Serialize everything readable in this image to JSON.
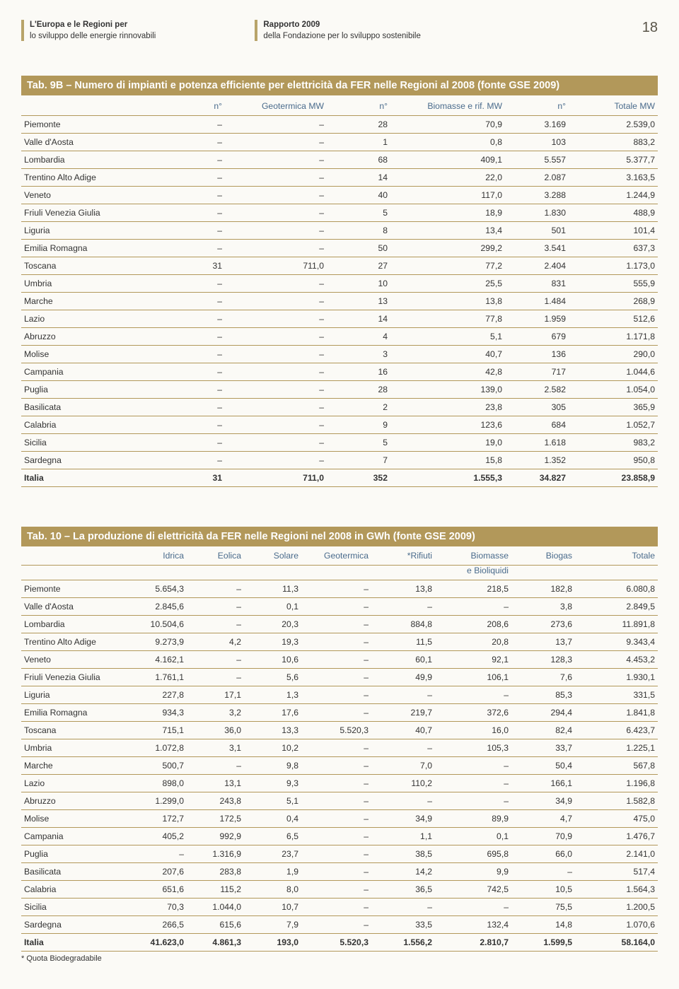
{
  "header": {
    "left_line1": "L'Europa e le Regioni per",
    "left_line2": "lo sviluppo delle energie rinnovabili",
    "mid_line1": "Rapporto 2009",
    "mid_line2": "della Fondazione per lo sviluppo sostenibile",
    "page_number": "18"
  },
  "colors": {
    "accent": "#b2985a",
    "header_text": "#4a6b8c"
  },
  "table9b": {
    "title": "Tab. 9B – Numero di impianti e potenza efficiente per elettricità da FER nelle Regioni al 2008 (fonte GSE 2009)",
    "columns": [
      "",
      "n°",
      "Geotermica MW",
      "n°",
      "Biomasse e rif. MW",
      "n°",
      "Totale MW"
    ],
    "rows": [
      [
        "Piemonte",
        "–",
        "–",
        "28",
        "70,9",
        "3.169",
        "2.539,0"
      ],
      [
        "Valle d'Aosta",
        "–",
        "–",
        "1",
        "0,8",
        "103",
        "883,2"
      ],
      [
        "Lombardia",
        "–",
        "–",
        "68",
        "409,1",
        "5.557",
        "5.377,7"
      ],
      [
        "Trentino Alto Adige",
        "–",
        "–",
        "14",
        "22,0",
        "2.087",
        "3.163,5"
      ],
      [
        "Veneto",
        "–",
        "–",
        "40",
        "117,0",
        "3.288",
        "1.244,9"
      ],
      [
        "Friuli Venezia Giulia",
        "–",
        "–",
        "5",
        "18,9",
        "1.830",
        "488,9"
      ],
      [
        "Liguria",
        "–",
        "–",
        "8",
        "13,4",
        "501",
        "101,4"
      ],
      [
        "Emilia Romagna",
        "–",
        "–",
        "50",
        "299,2",
        "3.541",
        "637,3"
      ],
      [
        "Toscana",
        "31",
        "711,0",
        "27",
        "77,2",
        "2.404",
        "1.173,0"
      ],
      [
        "Umbria",
        "–",
        "–",
        "10",
        "25,5",
        "831",
        "555,9"
      ],
      [
        "Marche",
        "–",
        "–",
        "13",
        "13,8",
        "1.484",
        "268,9"
      ],
      [
        "Lazio",
        "–",
        "–",
        "14",
        "77,8",
        "1.959",
        "512,6"
      ],
      [
        "Abruzzo",
        "–",
        "–",
        "4",
        "5,1",
        "679",
        "1.171,8"
      ],
      [
        "Molise",
        "–",
        "–",
        "3",
        "40,7",
        "136",
        "290,0"
      ],
      [
        "Campania",
        "–",
        "–",
        "16",
        "42,8",
        "717",
        "1.044,6"
      ],
      [
        "Puglia",
        "–",
        "–",
        "28",
        "139,0",
        "2.582",
        "1.054,0"
      ],
      [
        "Basilicata",
        "–",
        "–",
        "2",
        "23,8",
        "305",
        "365,9"
      ],
      [
        "Calabria",
        "–",
        "–",
        "9",
        "123,6",
        "684",
        "1.052,7"
      ],
      [
        "Sicilia",
        "–",
        "–",
        "5",
        "19,0",
        "1.618",
        "983,2"
      ],
      [
        "Sardegna",
        "–",
        "–",
        "7",
        "15,8",
        "1.352",
        "950,8"
      ]
    ],
    "total": [
      "Italia",
      "31",
      "711,0",
      "352",
      "1.555,3",
      "34.827",
      "23.858,9"
    ]
  },
  "table10": {
    "title": "Tab. 10 – La produzione di elettricità da FER nelle Regioni nel 2008 in GWh (fonte GSE 2009)",
    "columns": [
      "",
      "Idrica",
      "Eolica",
      "Solare",
      "Geotermica",
      "*Rifiuti",
      "Biomasse",
      "Biogas",
      "Totale"
    ],
    "subheader_col6": "e Bioliquidi",
    "rows": [
      [
        "Piemonte",
        "5.654,3",
        "–",
        "11,3",
        "–",
        "13,8",
        "218,5",
        "182,8",
        "6.080,8"
      ],
      [
        "Valle d'Aosta",
        "2.845,6",
        "–",
        "0,1",
        "–",
        "–",
        "–",
        "3,8",
        "2.849,5"
      ],
      [
        "Lombardia",
        "10.504,6",
        "–",
        "20,3",
        "–",
        "884,8",
        "208,6",
        "273,6",
        "11.891,8"
      ],
      [
        "Trentino Alto Adige",
        "9.273,9",
        "4,2",
        "19,3",
        "–",
        "11,5",
        "20,8",
        "13,7",
        "9.343,4"
      ],
      [
        "Veneto",
        "4.162,1",
        "–",
        "10,6",
        "–",
        "60,1",
        "92,1",
        "128,3",
        "4.453,2"
      ],
      [
        "Friuli Venezia Giulia",
        "1.761,1",
        "–",
        "5,6",
        "–",
        "49,9",
        "106,1",
        "7,6",
        "1.930,1"
      ],
      [
        "Liguria",
        "227,8",
        "17,1",
        "1,3",
        "–",
        "–",
        "–",
        "85,3",
        "331,5"
      ],
      [
        "Emilia Romagna",
        "934,3",
        "3,2",
        "17,6",
        "–",
        "219,7",
        "372,6",
        "294,4",
        "1.841,8"
      ],
      [
        "Toscana",
        "715,1",
        "36,0",
        "13,3",
        "5.520,3",
        "40,7",
        "16,0",
        "82,4",
        "6.423,7"
      ],
      [
        "Umbria",
        "1.072,8",
        "3,1",
        "10,2",
        "–",
        "–",
        "105,3",
        "33,7",
        "1.225,1"
      ],
      [
        "Marche",
        "500,7",
        "–",
        "9,8",
        "–",
        "7,0",
        "–",
        "50,4",
        "567,8"
      ],
      [
        "Lazio",
        "898,0",
        "13,1",
        "9,3",
        "–",
        "110,2",
        "–",
        "166,1",
        "1.196,8"
      ],
      [
        "Abruzzo",
        "1.299,0",
        "243,8",
        "5,1",
        "–",
        "–",
        "–",
        "34,9",
        "1.582,8"
      ],
      [
        "Molise",
        "172,7",
        "172,5",
        "0,4",
        "–",
        "34,9",
        "89,9",
        "4,7",
        "475,0"
      ],
      [
        "Campania",
        "405,2",
        "992,9",
        "6,5",
        "–",
        "1,1",
        "0,1",
        "70,9",
        "1.476,7"
      ],
      [
        "Puglia",
        "–",
        "1.316,9",
        "23,7",
        "–",
        "38,5",
        "695,8",
        "66,0",
        "2.141,0"
      ],
      [
        "Basilicata",
        "207,6",
        "283,8",
        "1,9",
        "–",
        "14,2",
        "9,9",
        "–",
        "517,4"
      ],
      [
        "Calabria",
        "651,6",
        "115,2",
        "8,0",
        "–",
        "36,5",
        "742,5",
        "10,5",
        "1.564,3"
      ],
      [
        "Sicilia",
        "70,3",
        "1.044,0",
        "10,7",
        "–",
        "–",
        "–",
        "75,5",
        "1.200,5"
      ],
      [
        "Sardegna",
        "266,5",
        "615,6",
        "7,9",
        "–",
        "33,5",
        "132,4",
        "14,8",
        "1.070,6"
      ]
    ],
    "total": [
      "Italia",
      "41.623,0",
      "4.861,3",
      "193,0",
      "5.520,3",
      "1.556,2",
      "2.810,7",
      "1.599,5",
      "58.164,0"
    ],
    "footnote": "* Quota Biodegradabile"
  }
}
